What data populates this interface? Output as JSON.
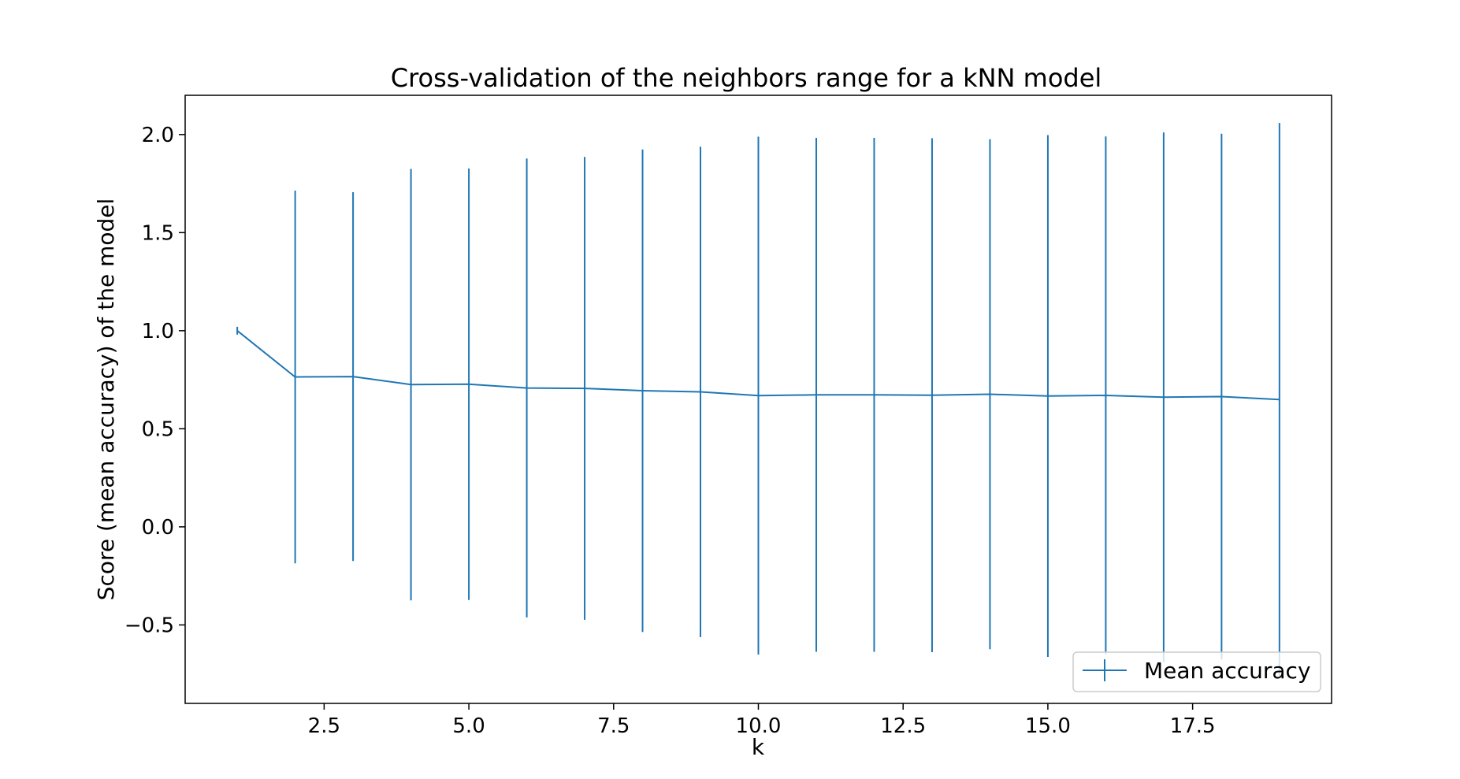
{
  "chart_data": {
    "type": "line",
    "title": "Cross-validation of the neighbors range for a kNN model",
    "xlabel": "k",
    "ylabel": "Score (mean accuracy) of the model",
    "xlim": [
      0.1,
      19.9
    ],
    "ylim": [
      -0.9,
      2.2
    ],
    "xticks": [
      {
        "value": 2.5,
        "label": "2.5"
      },
      {
        "value": 5.0,
        "label": "5.0"
      },
      {
        "value": 7.5,
        "label": "7.5"
      },
      {
        "value": 10.0,
        "label": "10.0"
      },
      {
        "value": 12.5,
        "label": "12.5"
      },
      {
        "value": 15.0,
        "label": "15.0"
      },
      {
        "value": 17.5,
        "label": "17.5"
      }
    ],
    "yticks": [
      {
        "value": -0.5,
        "label": "−0.5"
      },
      {
        "value": 0.0,
        "label": "0.0"
      },
      {
        "value": 0.5,
        "label": "0.5"
      },
      {
        "value": 1.0,
        "label": "1.0"
      },
      {
        "value": 1.5,
        "label": "1.5"
      },
      {
        "value": 2.0,
        "label": "2.0"
      }
    ],
    "grid": false,
    "legend_position": "lower-right",
    "series": [
      {
        "name": "Mean accuracy",
        "color": "#1f77b4",
        "x": [
          1,
          2,
          3,
          4,
          5,
          6,
          7,
          8,
          9,
          10,
          11,
          12,
          13,
          14,
          15,
          16,
          17,
          18,
          19
        ],
        "y": [
          1.0,
          0.764,
          0.766,
          0.725,
          0.727,
          0.708,
          0.706,
          0.694,
          0.688,
          0.669,
          0.673,
          0.673,
          0.671,
          0.676,
          0.667,
          0.67,
          0.661,
          0.664,
          0.649
        ],
        "yerr": [
          0.02,
          0.95,
          0.94,
          1.1,
          1.1,
          1.17,
          1.18,
          1.23,
          1.25,
          1.32,
          1.31,
          1.31,
          1.31,
          1.3,
          1.33,
          1.32,
          1.35,
          1.34,
          1.41
        ]
      }
    ]
  }
}
